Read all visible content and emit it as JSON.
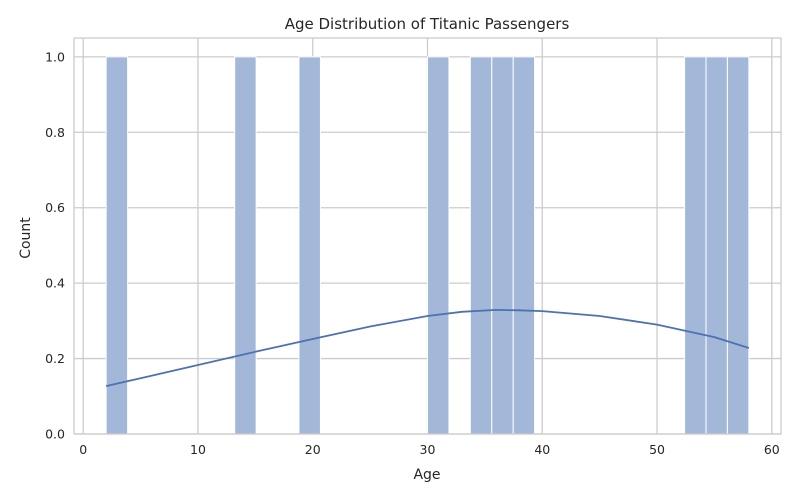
{
  "chart_data": {
    "type": "bar",
    "subtype": "histogram-with-kde",
    "title": "Age Distribution of Titanic Passengers",
    "xlabel": "Age",
    "ylabel": "Count",
    "xlim": [
      -0.8,
      60.8
    ],
    "ylim": [
      0,
      1.05
    ],
    "xticks": [
      0,
      10,
      20,
      30,
      40,
      50,
      60
    ],
    "yticks": [
      0.0,
      0.2,
      0.4,
      0.6,
      0.8,
      1.0
    ],
    "ytick_labels": [
      "0.0",
      "0.2",
      "0.4",
      "0.6",
      "0.8",
      "1.0"
    ],
    "grid": true,
    "bar_color": "#a3b7d8",
    "line_color": "#4c72b0",
    "bins": [
      {
        "x0": 2.0,
        "x1": 3.87,
        "count": 1
      },
      {
        "x0": 13.2,
        "x1": 15.07,
        "count": 1
      },
      {
        "x0": 18.8,
        "x1": 20.67,
        "count": 1
      },
      {
        "x0": 30.0,
        "x1": 31.87,
        "count": 1
      },
      {
        "x0": 33.73,
        "x1": 35.6,
        "count": 1
      },
      {
        "x0": 35.6,
        "x1": 37.47,
        "count": 1
      },
      {
        "x0": 37.47,
        "x1": 39.33,
        "count": 1
      },
      {
        "x0": 52.4,
        "x1": 54.27,
        "count": 1
      },
      {
        "x0": 54.27,
        "x1": 56.13,
        "count": 1
      },
      {
        "x0": 56.13,
        "x1": 58.0,
        "count": 1
      }
    ],
    "kde": {
      "x": [
        2,
        5,
        10,
        15,
        20,
        25,
        30,
        33,
        36,
        38,
        40,
        45,
        50,
        55,
        58
      ],
      "y": [
        0.127,
        0.148,
        0.183,
        0.218,
        0.252,
        0.285,
        0.313,
        0.324,
        0.329,
        0.328,
        0.326,
        0.313,
        0.29,
        0.257,
        0.228
      ]
    }
  }
}
